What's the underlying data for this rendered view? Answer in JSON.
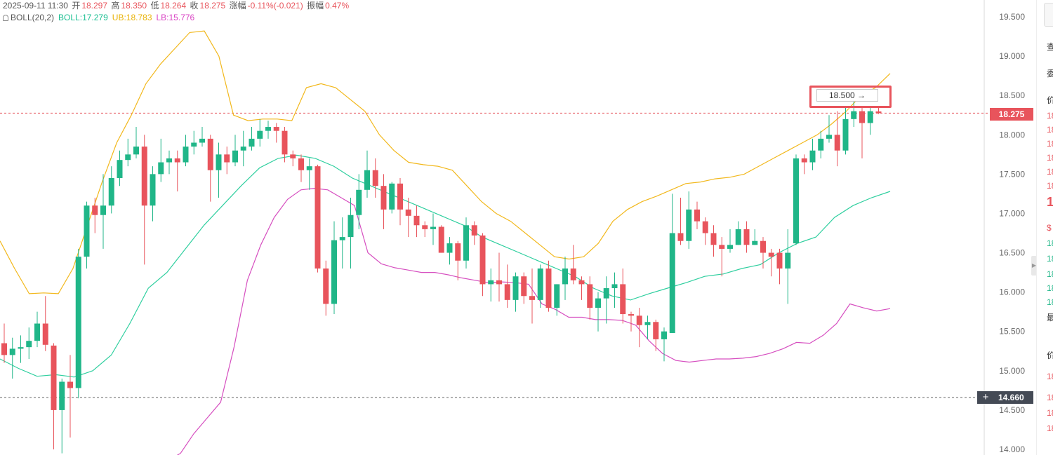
{
  "header": {
    "datetime": "2025-09-11 11:30",
    "open_label": "开",
    "open": "18.297",
    "high_label": "高",
    "high": "18.350",
    "low_label": "低",
    "low": "18.264",
    "close_label": "收",
    "close": "18.275",
    "change_label": "涨幅",
    "change": "-0.11%(-0.021)",
    "amplitude_label": "振幅",
    "amplitude": "0.47%"
  },
  "indicator": {
    "name": "BOLL(20,2)",
    "boll": "BOLL:17.279",
    "ub": "UB:18.783",
    "lb": "LB:15.776"
  },
  "price_tag": "18.275",
  "crosshair_tag": "14.660",
  "alert_label": "18.500",
  "right_panel": {
    "cells": [
      "查",
      "委",
      "价",
      "18",
      "18",
      "18",
      "18",
      "18",
      "18",
      "1",
      "$",
      "18",
      "18",
      "18",
      "18",
      "18",
      "最",
      "价",
      "18",
      "18",
      "18",
      "18"
    ]
  },
  "colors": {
    "up": "#20b688",
    "down": "#e8545c",
    "boll": "#2fcf9f",
    "ub": "#f2b81c",
    "lb": "#d64fc0"
  },
  "chart_data": {
    "type": "candlestick",
    "y_ticks": [
      "19.500",
      "19.000",
      "18.500",
      "18.000",
      "17.500",
      "17.000",
      "16.500",
      "16.000",
      "15.500",
      "15.000",
      "14.500",
      "14.000"
    ],
    "ylim": [
      13.92,
      19.76
    ],
    "current_price": 18.275,
    "crosshair_price": 14.66,
    "alert_price": 18.5,
    "candles": [
      [
        15.35,
        15.2,
        15.6,
        15.1
      ],
      [
        15.2,
        15.28,
        15.42,
        14.9
      ],
      [
        15.28,
        15.3,
        15.45,
        15.1
      ],
      [
        15.3,
        15.38,
        15.55,
        15.15
      ],
      [
        15.38,
        15.6,
        15.75,
        15.3
      ],
      [
        15.6,
        15.33,
        15.95,
        15.25
      ],
      [
        15.32,
        14.5,
        15.35,
        14.0
      ],
      [
        14.5,
        14.86,
        14.9,
        13.95
      ],
      [
        14.86,
        14.78,
        15.2,
        14.15
      ],
      [
        14.78,
        16.45,
        16.55,
        14.65
      ],
      [
        16.45,
        17.1,
        17.15,
        16.3
      ],
      [
        17.1,
        16.98,
        17.2,
        16.75
      ],
      [
        16.98,
        17.1,
        17.5,
        16.55
      ],
      [
        17.1,
        17.45,
        17.6,
        17.0
      ],
      [
        17.45,
        17.68,
        17.8,
        17.35
      ],
      [
        17.68,
        17.75,
        17.95,
        17.6
      ],
      [
        17.75,
        17.85,
        18.1,
        17.7
      ],
      [
        17.85,
        17.1,
        18.0,
        16.35
      ],
      [
        17.1,
        17.5,
        17.6,
        16.9
      ],
      [
        17.5,
        17.65,
        17.95,
        17.4
      ],
      [
        17.65,
        17.7,
        17.8,
        17.5
      ],
      [
        17.7,
        17.65,
        17.8,
        17.28
      ],
      [
        17.65,
        17.85,
        18.0,
        17.6
      ],
      [
        17.85,
        17.9,
        18.05,
        17.75
      ],
      [
        17.9,
        17.95,
        18.1,
        17.85
      ],
      [
        17.95,
        17.55,
        18.0,
        17.15
      ],
      [
        17.55,
        17.75,
        17.9,
        17.2
      ],
      [
        17.75,
        17.65,
        17.85,
        17.5
      ],
      [
        17.65,
        17.8,
        18.0,
        17.6
      ],
      [
        17.8,
        17.85,
        18.05,
        17.6
      ],
      [
        17.85,
        17.95,
        18.1,
        17.8
      ],
      [
        17.95,
        18.05,
        18.2,
        17.85
      ],
      [
        18.05,
        18.1,
        18.18,
        17.95
      ],
      [
        18.1,
        18.05,
        18.15,
        17.9
      ],
      [
        18.05,
        17.75,
        18.1,
        17.65
      ],
      [
        17.75,
        17.7,
        17.8,
        17.6
      ],
      [
        17.7,
        17.55,
        17.75,
        17.4
      ],
      [
        17.55,
        17.6,
        17.7,
        17.3
      ],
      [
        17.6,
        16.3,
        17.62,
        16.25
      ],
      [
        16.3,
        15.85,
        16.4,
        15.7
      ],
      [
        15.85,
        16.66,
        16.9,
        15.72
      ],
      [
        16.66,
        16.7,
        16.95,
        16.3
      ],
      [
        16.7,
        16.98,
        17.2,
        16.3
      ],
      [
        16.98,
        17.3,
        17.5,
        16.8
      ],
      [
        17.3,
        17.55,
        17.8,
        17.2
      ],
      [
        17.55,
        17.35,
        17.7,
        17.2
      ],
      [
        17.35,
        17.05,
        17.5,
        16.8
      ],
      [
        17.05,
        17.38,
        17.4,
        17.0
      ],
      [
        17.38,
        17.05,
        17.45,
        16.85
      ],
      [
        17.05,
        16.97,
        17.2,
        16.7
      ],
      [
        16.97,
        16.85,
        17.1,
        16.7
      ],
      [
        16.85,
        16.8,
        16.9,
        16.7
      ],
      [
        16.8,
        16.83,
        17.0,
        16.6
      ],
      [
        16.83,
        16.5,
        16.85,
        16.5
      ],
      [
        16.5,
        16.62,
        16.7,
        16.35
      ],
      [
        16.62,
        16.4,
        16.65,
        16.15
      ],
      [
        16.4,
        16.85,
        16.95,
        16.3
      ],
      [
        16.85,
        16.72,
        16.9,
        16.6
      ],
      [
        16.72,
        16.1,
        16.75,
        15.95
      ],
      [
        16.1,
        16.15,
        16.3,
        15.88
      ],
      [
        16.15,
        16.1,
        16.5,
        15.88
      ],
      [
        16.1,
        15.9,
        16.35,
        15.8
      ],
      [
        15.9,
        16.2,
        16.25,
        15.75
      ],
      [
        16.2,
        15.95,
        16.25,
        15.85
      ],
      [
        15.95,
        15.9,
        16.3,
        15.6
      ],
      [
        15.9,
        16.3,
        16.35,
        15.8
      ],
      [
        16.3,
        15.8,
        16.4,
        15.75
      ],
      [
        15.8,
        16.1,
        16.1,
        15.7
      ],
      [
        16.1,
        16.3,
        16.45,
        15.9
      ],
      [
        16.3,
        16.15,
        16.6,
        16.1
      ],
      [
        16.15,
        16.1,
        16.2,
        15.9
      ],
      [
        16.1,
        15.8,
        16.2,
        15.65
      ],
      [
        15.8,
        15.92,
        16.0,
        15.5
      ],
      [
        15.92,
        16.05,
        16.2,
        15.6
      ],
      [
        16.05,
        16.1,
        16.25,
        15.8
      ],
      [
        16.1,
        15.72,
        16.3,
        15.6
      ],
      [
        15.72,
        15.7,
        15.75,
        15.5
      ],
      [
        15.7,
        15.58,
        15.8,
        15.3
      ],
      [
        15.58,
        15.62,
        15.7,
        15.4
      ],
      [
        15.62,
        15.4,
        15.65,
        15.25
      ],
      [
        15.4,
        15.5,
        15.55,
        15.12
      ],
      [
        15.48,
        16.75,
        17.25,
        15.48
      ],
      [
        16.75,
        16.65,
        17.2,
        16.6
      ],
      [
        16.65,
        17.05,
        17.28,
        16.55
      ],
      [
        17.05,
        16.9,
        17.15,
        16.8
      ],
      [
        16.9,
        16.75,
        16.95,
        16.6
      ],
      [
        16.75,
        16.6,
        16.85,
        16.45
      ],
      [
        16.6,
        16.55,
        16.7,
        16.2
      ],
      [
        16.55,
        16.6,
        16.8,
        16.5
      ],
      [
        16.6,
        16.8,
        16.9,
        16.6
      ],
      [
        16.8,
        16.6,
        16.9,
        16.5
      ],
      [
        16.6,
        16.65,
        16.8,
        16.6
      ],
      [
        16.65,
        16.5,
        16.7,
        16.3
      ],
      [
        16.5,
        16.45,
        16.55,
        16.2
      ],
      [
        16.5,
        16.3,
        16.55,
        16.1
      ],
      [
        16.3,
        16.5,
        16.8,
        15.85
      ],
      [
        16.62,
        17.7,
        17.75,
        16.6
      ],
      [
        17.7,
        17.65,
        17.75,
        17.5
      ],
      [
        17.65,
        17.8,
        17.95,
        17.55
      ],
      [
        17.8,
        17.95,
        18.05,
        17.7
      ],
      [
        17.95,
        18.0,
        18.25,
        17.9
      ],
      [
        18.0,
        17.8,
        18.3,
        17.6
      ],
      [
        17.8,
        18.2,
        18.35,
        17.75
      ],
      [
        18.2,
        18.3,
        18.45,
        18.1
      ],
      [
        18.3,
        18.15,
        18.35,
        17.7
      ],
      [
        18.15,
        18.3,
        18.35,
        18.0
      ],
      [
        18.297,
        18.275,
        18.35,
        18.264
      ]
    ],
    "bands_note": "",
    "ub": [
      16.65,
      16.3,
      15.98,
      15.99,
      15.98,
      16.3,
      16.85,
      17.4,
      17.9,
      18.25,
      18.65,
      18.9,
      19.1,
      19.3,
      19.32,
      19.0,
      18.25,
      18.18,
      18.2,
      18.2,
      18.18,
      18.6,
      18.65,
      18.6,
      18.45,
      18.3,
      18.0,
      17.8,
      17.65,
      17.62,
      17.6,
      17.55,
      17.35,
      17.15,
      17.0,
      16.9,
      16.75,
      16.6,
      16.45,
      16.42,
      16.45,
      16.62,
      16.9,
      17.05,
      17.15,
      17.22,
      17.3,
      17.38,
      17.4,
      17.44,
      17.46,
      17.5,
      17.6,
      17.7,
      17.8,
      17.9,
      18.0,
      18.14,
      18.3,
      18.5,
      18.6,
      18.78
    ],
    "mid": [
      15.15,
      15.03,
      14.93,
      14.95,
      14.92,
      15.0,
      15.2,
      15.6,
      16.05,
      16.25,
      16.55,
      16.85,
      17.1,
      17.35,
      17.58,
      17.7,
      17.74,
      17.7,
      17.6,
      17.45,
      17.35,
      17.25,
      17.15,
      17.05,
      16.95,
      16.85,
      16.7,
      16.6,
      16.5,
      16.4,
      16.3,
      16.2,
      16.05,
      15.95,
      15.9,
      15.98,
      16.05,
      16.12,
      16.2,
      16.23,
      16.3,
      16.35,
      16.5,
      16.62,
      16.7,
      16.95,
      17.1,
      17.2,
      17.28
    ],
    "lb": [
      13.85,
      13.95,
      14.2,
      14.4,
      14.6,
      15.3,
      16.15,
      16.6,
      16.95,
      17.18,
      17.3,
      17.32,
      17.3,
      17.2,
      17.1,
      16.5,
      16.36,
      16.31,
      16.28,
      16.25,
      16.25,
      16.22,
      16.18,
      16.15,
      16.12,
      16.13,
      16.12,
      16.1,
      15.85,
      15.78,
      15.68,
      15.68,
      15.65,
      15.65,
      15.64,
      15.58,
      15.38,
      15.22,
      15.13,
      15.11,
      15.13,
      15.15,
      15.15,
      15.16,
      15.18,
      15.22,
      15.28,
      15.36,
      15.35,
      15.45,
      15.6,
      15.85,
      15.8,
      15.76,
      15.79
    ]
  }
}
